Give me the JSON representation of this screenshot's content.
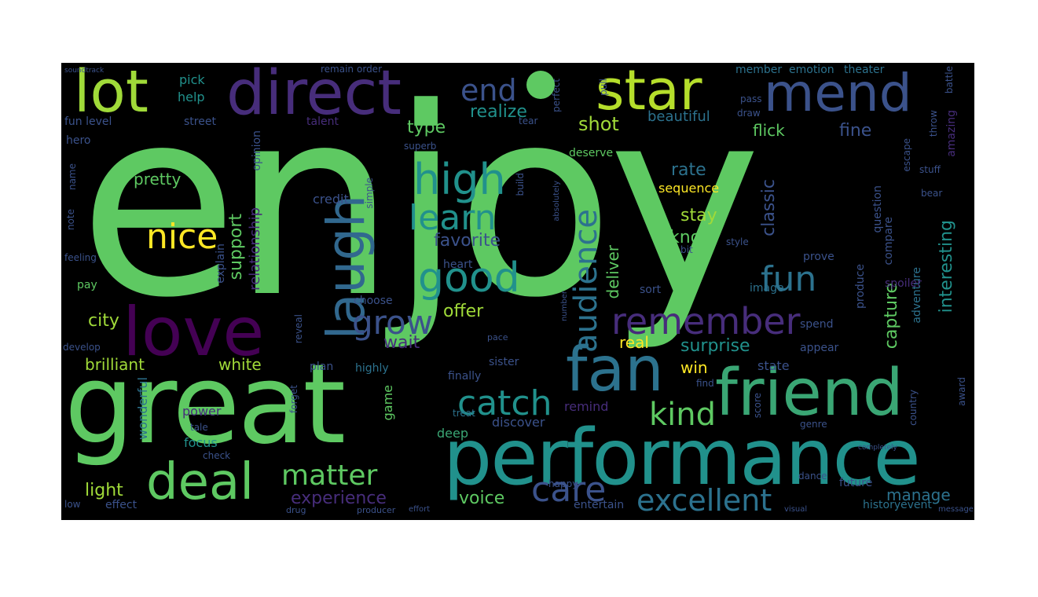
{
  "palette": {
    "background": "#000000",
    "green": "#5ec962",
    "light_green": "#a0da39",
    "teal": "#21918c",
    "blue": "#3b528b",
    "purple": "#472d7b",
    "dark_purple": "#440154",
    "yellow": "#fde725",
    "mid_teal": "#2c728e"
  },
  "words": [
    {
      "text": "enjoy",
      "color": "#5ec962"
    },
    {
      "text": "great",
      "color": "#5ec962"
    },
    {
      "text": "performance",
      "color": "#21918c"
    },
    {
      "text": "love",
      "color": "#440154"
    },
    {
      "text": "friend",
      "color": "#3aa674"
    },
    {
      "text": "fan",
      "color": "#2c728e"
    },
    {
      "text": "direct",
      "color": "#472d7b"
    },
    {
      "text": "star",
      "color": "#b5de2b"
    },
    {
      "text": "lot",
      "color": "#a0da39"
    },
    {
      "text": "mend",
      "color": "#3b528b"
    },
    {
      "text": "laugh",
      "color": "#31688e"
    },
    {
      "text": "deal",
      "color": "#5ec962"
    },
    {
      "text": "high",
      "color": "#21918c"
    },
    {
      "text": "learn",
      "color": "#21918c"
    },
    {
      "text": "good",
      "color": "#21918c"
    },
    {
      "text": "nice",
      "color": "#fde725"
    },
    {
      "text": "grow",
      "color": "#3b528b"
    },
    {
      "text": "remember",
      "color": "#472d7b"
    },
    {
      "text": "audience",
      "color": "#2c728e"
    },
    {
      "text": "fun",
      "color": "#2c728e"
    },
    {
      "text": "catch",
      "color": "#21918c"
    },
    {
      "text": "kind",
      "color": "#5ec962"
    },
    {
      "text": "care",
      "color": "#3b528b"
    },
    {
      "text": "excellent",
      "color": "#2c728e"
    },
    {
      "text": "matter",
      "color": "#5ec962"
    },
    {
      "text": "end",
      "color": "#3b528b"
    },
    {
      "text": "experience",
      "color": "#472d7b"
    },
    {
      "text": "brilliant",
      "color": "#a0da39"
    },
    {
      "text": "white",
      "color": "#a0da39"
    },
    {
      "text": "city",
      "color": "#a0da39"
    },
    {
      "text": "pretty",
      "color": "#5ec962"
    },
    {
      "text": "support",
      "color": "#5ec962"
    },
    {
      "text": "favorite",
      "color": "#3b528b"
    },
    {
      "text": "realize",
      "color": "#21918c"
    },
    {
      "text": "shot",
      "color": "#a0da39"
    },
    {
      "text": "type",
      "color": "#5ec962"
    },
    {
      "text": "offer",
      "color": "#a0da39"
    },
    {
      "text": "wait",
      "color": "#472d7b"
    },
    {
      "text": "rate",
      "color": "#2c728e"
    },
    {
      "text": "classic",
      "color": "#3b528b"
    },
    {
      "text": "stay",
      "color": "#a0da39"
    },
    {
      "text": "know",
      "color": "#5ec962"
    },
    {
      "text": "sequence",
      "color": "#fde725"
    },
    {
      "text": "fine",
      "color": "#3b528b"
    },
    {
      "text": "flick",
      "color": "#5ec962"
    },
    {
      "text": "deliver",
      "color": "#5ec962"
    },
    {
      "text": "beautiful",
      "color": "#2c728e"
    },
    {
      "text": "surprise",
      "color": "#21918c"
    },
    {
      "text": "real",
      "color": "#fde725"
    },
    {
      "text": "win",
      "color": "#fde725"
    },
    {
      "text": "voice",
      "color": "#5ec962"
    },
    {
      "text": "light",
      "color": "#a0da39"
    },
    {
      "text": "manage",
      "color": "#2c728e"
    },
    {
      "text": "capture",
      "color": "#5ec962"
    },
    {
      "text": "interesting",
      "color": "#21918c"
    },
    {
      "text": "state",
      "color": "#3b528b"
    },
    {
      "text": "help",
      "color": "#21918c"
    },
    {
      "text": "pick",
      "color": "#21918c"
    },
    {
      "text": "credit",
      "color": "#3b528b"
    },
    {
      "text": "pay",
      "color": "#5ec962"
    },
    {
      "text": "focus",
      "color": "#21918c"
    },
    {
      "text": "power",
      "color": "#472d7b"
    },
    {
      "text": "wonderful",
      "color": "#2c728e"
    },
    {
      "text": "remind",
      "color": "#472d7b"
    },
    {
      "text": "discover",
      "color": "#3b528b"
    },
    {
      "text": "deep",
      "color": "#3aa674"
    },
    {
      "text": "game",
      "color": "#5ec962"
    },
    {
      "text": "relationship",
      "color": "#472d7b"
    },
    {
      "text": "question",
      "color": "#3b528b"
    },
    {
      "text": "amazing",
      "color": "#472d7b"
    },
    {
      "text": "fun level",
      "color": "#3b528b"
    },
    {
      "text": "member",
      "color": "#2c728e"
    },
    {
      "text": "emotion",
      "color": "#2c728e"
    },
    {
      "text": "theater",
      "color": "#2c728e"
    },
    {
      "text": "street",
      "color": "#3b528b"
    },
    {
      "text": "talent",
      "color": "#472d7b"
    },
    {
      "text": "hero",
      "color": "#3b528b"
    },
    {
      "text": "opinion",
      "color": "#3b528b"
    },
    {
      "text": "explain",
      "color": "#3b528b"
    },
    {
      "text": "choose",
      "color": "#3b528b"
    },
    {
      "text": "highly",
      "color": "#2c728e"
    },
    {
      "text": "plan",
      "color": "#3b528b"
    },
    {
      "text": "finally",
      "color": "#3b528b"
    },
    {
      "text": "sister",
      "color": "#3b528b"
    },
    {
      "text": "adventure",
      "color": "#2c728e"
    },
    {
      "text": "produce",
      "color": "#3b528b"
    },
    {
      "text": "spoiler",
      "color": "#472d7b"
    },
    {
      "text": "image",
      "color": "#2c728e"
    },
    {
      "text": "sort",
      "color": "#3b528b"
    },
    {
      "text": "prove",
      "color": "#3b528b"
    },
    {
      "text": "compare",
      "color": "#3b528b"
    },
    {
      "text": "heart",
      "color": "#3b528b"
    },
    {
      "text": "deserve",
      "color": "#5ec962"
    },
    {
      "text": "spend",
      "color": "#3b528b"
    },
    {
      "text": "appear",
      "color": "#3b528b"
    },
    {
      "text": "find",
      "color": "#3b528b"
    },
    {
      "text": "score",
      "color": "#3b528b"
    },
    {
      "text": "genre",
      "color": "#3b528b"
    },
    {
      "text": "future",
      "color": "#3b528b"
    },
    {
      "text": "history",
      "color": "#2c728e"
    },
    {
      "text": "event",
      "color": "#2c728e"
    },
    {
      "text": "entertain",
      "color": "#3b528b"
    },
    {
      "text": "effect",
      "color": "#3b528b"
    },
    {
      "text": "low",
      "color": "#3b528b"
    },
    {
      "text": "tale",
      "color": "#3b528b"
    },
    {
      "text": "check",
      "color": "#3b528b"
    },
    {
      "text": "treat",
      "color": "#2c728e"
    },
    {
      "text": "happy",
      "color": "#3b528b"
    },
    {
      "text": "forget",
      "color": "#3b528b"
    },
    {
      "text": "develop",
      "color": "#3b528b"
    },
    {
      "text": "reveal",
      "color": "#3b528b"
    },
    {
      "text": "feeling",
      "color": "#3b528b"
    },
    {
      "text": "name",
      "color": "#3b528b"
    },
    {
      "text": "note",
      "color": "#3b528b"
    },
    {
      "text": "perfect",
      "color": "#3b528b"
    },
    {
      "text": "pull",
      "color": "#3b528b"
    },
    {
      "text": "pass",
      "color": "#3b528b"
    },
    {
      "text": "draw",
      "color": "#3b528b"
    },
    {
      "text": "battle",
      "color": "#3b528b"
    },
    {
      "text": "throw",
      "color": "#3b528b"
    },
    {
      "text": "escape",
      "color": "#3b528b"
    },
    {
      "text": "stuff",
      "color": "#3b528b"
    },
    {
      "text": "bear",
      "color": "#3b528b"
    },
    {
      "text": "style",
      "color": "#3b528b"
    },
    {
      "text": "bit",
      "color": "#3b528b"
    },
    {
      "text": "superb",
      "color": "#3b528b"
    },
    {
      "text": "build",
      "color": "#3b528b"
    },
    {
      "text": "simple",
      "color": "#3b528b"
    },
    {
      "text": "remain",
      "color": "#3b528b"
    },
    {
      "text": "order",
      "color": "#3b528b"
    },
    {
      "text": "tear",
      "color": "#3b528b"
    },
    {
      "text": "pace",
      "color": "#3b528b"
    },
    {
      "text": "country",
      "color": "#3b528b"
    },
    {
      "text": "award",
      "color": "#3b528b"
    },
    {
      "text": "dance",
      "color": "#3b528b"
    },
    {
      "text": "drug",
      "color": "#3b528b"
    },
    {
      "text": "producer",
      "color": "#3b528b"
    },
    {
      "text": "effort",
      "color": "#3b528b"
    },
    {
      "text": "visual",
      "color": "#3b528b"
    },
    {
      "text": "message",
      "color": "#3b528b"
    },
    {
      "text": "absolutely",
      "color": "#3b528b"
    },
    {
      "text": "number",
      "color": "#3b528b"
    },
    {
      "text": "completely",
      "color": "#3b528b"
    },
    {
      "text": "soundtrack",
      "color": "#3b528b"
    }
  ]
}
